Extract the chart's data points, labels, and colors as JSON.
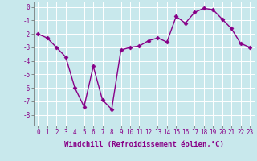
{
  "x": [
    0,
    1,
    2,
    3,
    4,
    5,
    6,
    7,
    8,
    9,
    10,
    11,
    12,
    13,
    14,
    15,
    16,
    17,
    18,
    19,
    20,
    21,
    22,
    23
  ],
  "y": [
    -2.0,
    -2.3,
    -3.0,
    -3.7,
    -6.0,
    -7.4,
    -4.4,
    -6.9,
    -7.6,
    -3.2,
    -3.0,
    -2.9,
    -2.5,
    -2.3,
    -2.6,
    -0.7,
    -1.2,
    -0.4,
    -0.1,
    -0.2,
    -0.9,
    -1.6,
    -2.7,
    -3.0
  ],
  "line_color": "#880088",
  "marker": "D",
  "markersize": 2.5,
  "linewidth": 1.0,
  "xlabel": "Windchill (Refroidissement éolien,°C)",
  "xlabel_fontsize": 6.5,
  "xtick_labels": [
    "0",
    "1",
    "2",
    "3",
    "4",
    "5",
    "6",
    "7",
    "8",
    "9",
    "10",
    "11",
    "12",
    "13",
    "14",
    "15",
    "16",
    "17",
    "18",
    "19",
    "20",
    "21",
    "22",
    "23"
  ],
  "ytick_values": [
    0,
    -1,
    -2,
    -3,
    -4,
    -5,
    -6,
    -7,
    -8
  ],
  "ylim": [
    -8.8,
    0.4
  ],
  "xlim": [
    -0.5,
    23.5
  ],
  "bg_color": "#c8e8ec",
  "grid_color": "#ffffff",
  "tick_fontsize": 5.5,
  "label_color": "#880088"
}
